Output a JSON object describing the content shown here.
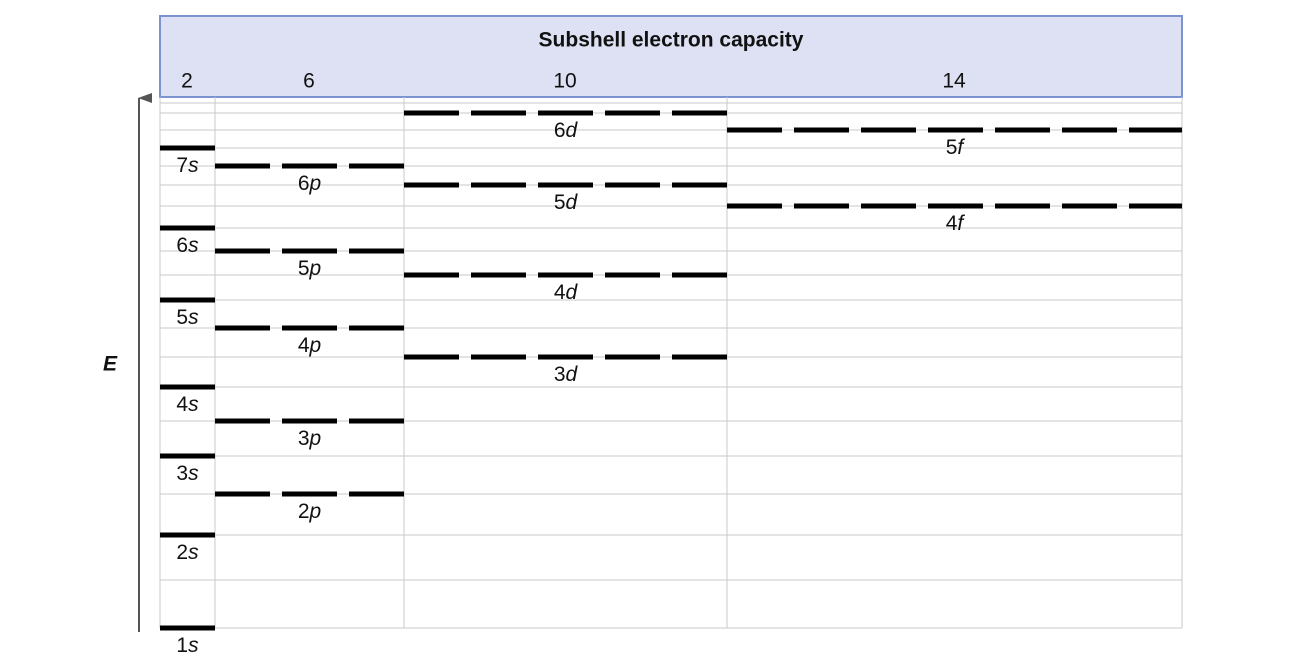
{
  "header": {
    "title": "Subshell electron capacity",
    "capacities": [
      "2",
      "6",
      "10",
      "14"
    ]
  },
  "axis_label": "E",
  "orbitals": [
    {
      "label": "1s"
    },
    {
      "label": "2s"
    },
    {
      "label": "3s"
    },
    {
      "label": "4s"
    },
    {
      "label": "5s"
    },
    {
      "label": "6s"
    },
    {
      "label": "7s"
    },
    {
      "label": "2p"
    },
    {
      "label": "3p"
    },
    {
      "label": "4p"
    },
    {
      "label": "5p"
    },
    {
      "label": "6p"
    },
    {
      "label": "3d"
    },
    {
      "label": "4d"
    },
    {
      "label": "5d"
    },
    {
      "label": "6d"
    },
    {
      "label": "4f"
    },
    {
      "label": "5f"
    }
  ]
}
